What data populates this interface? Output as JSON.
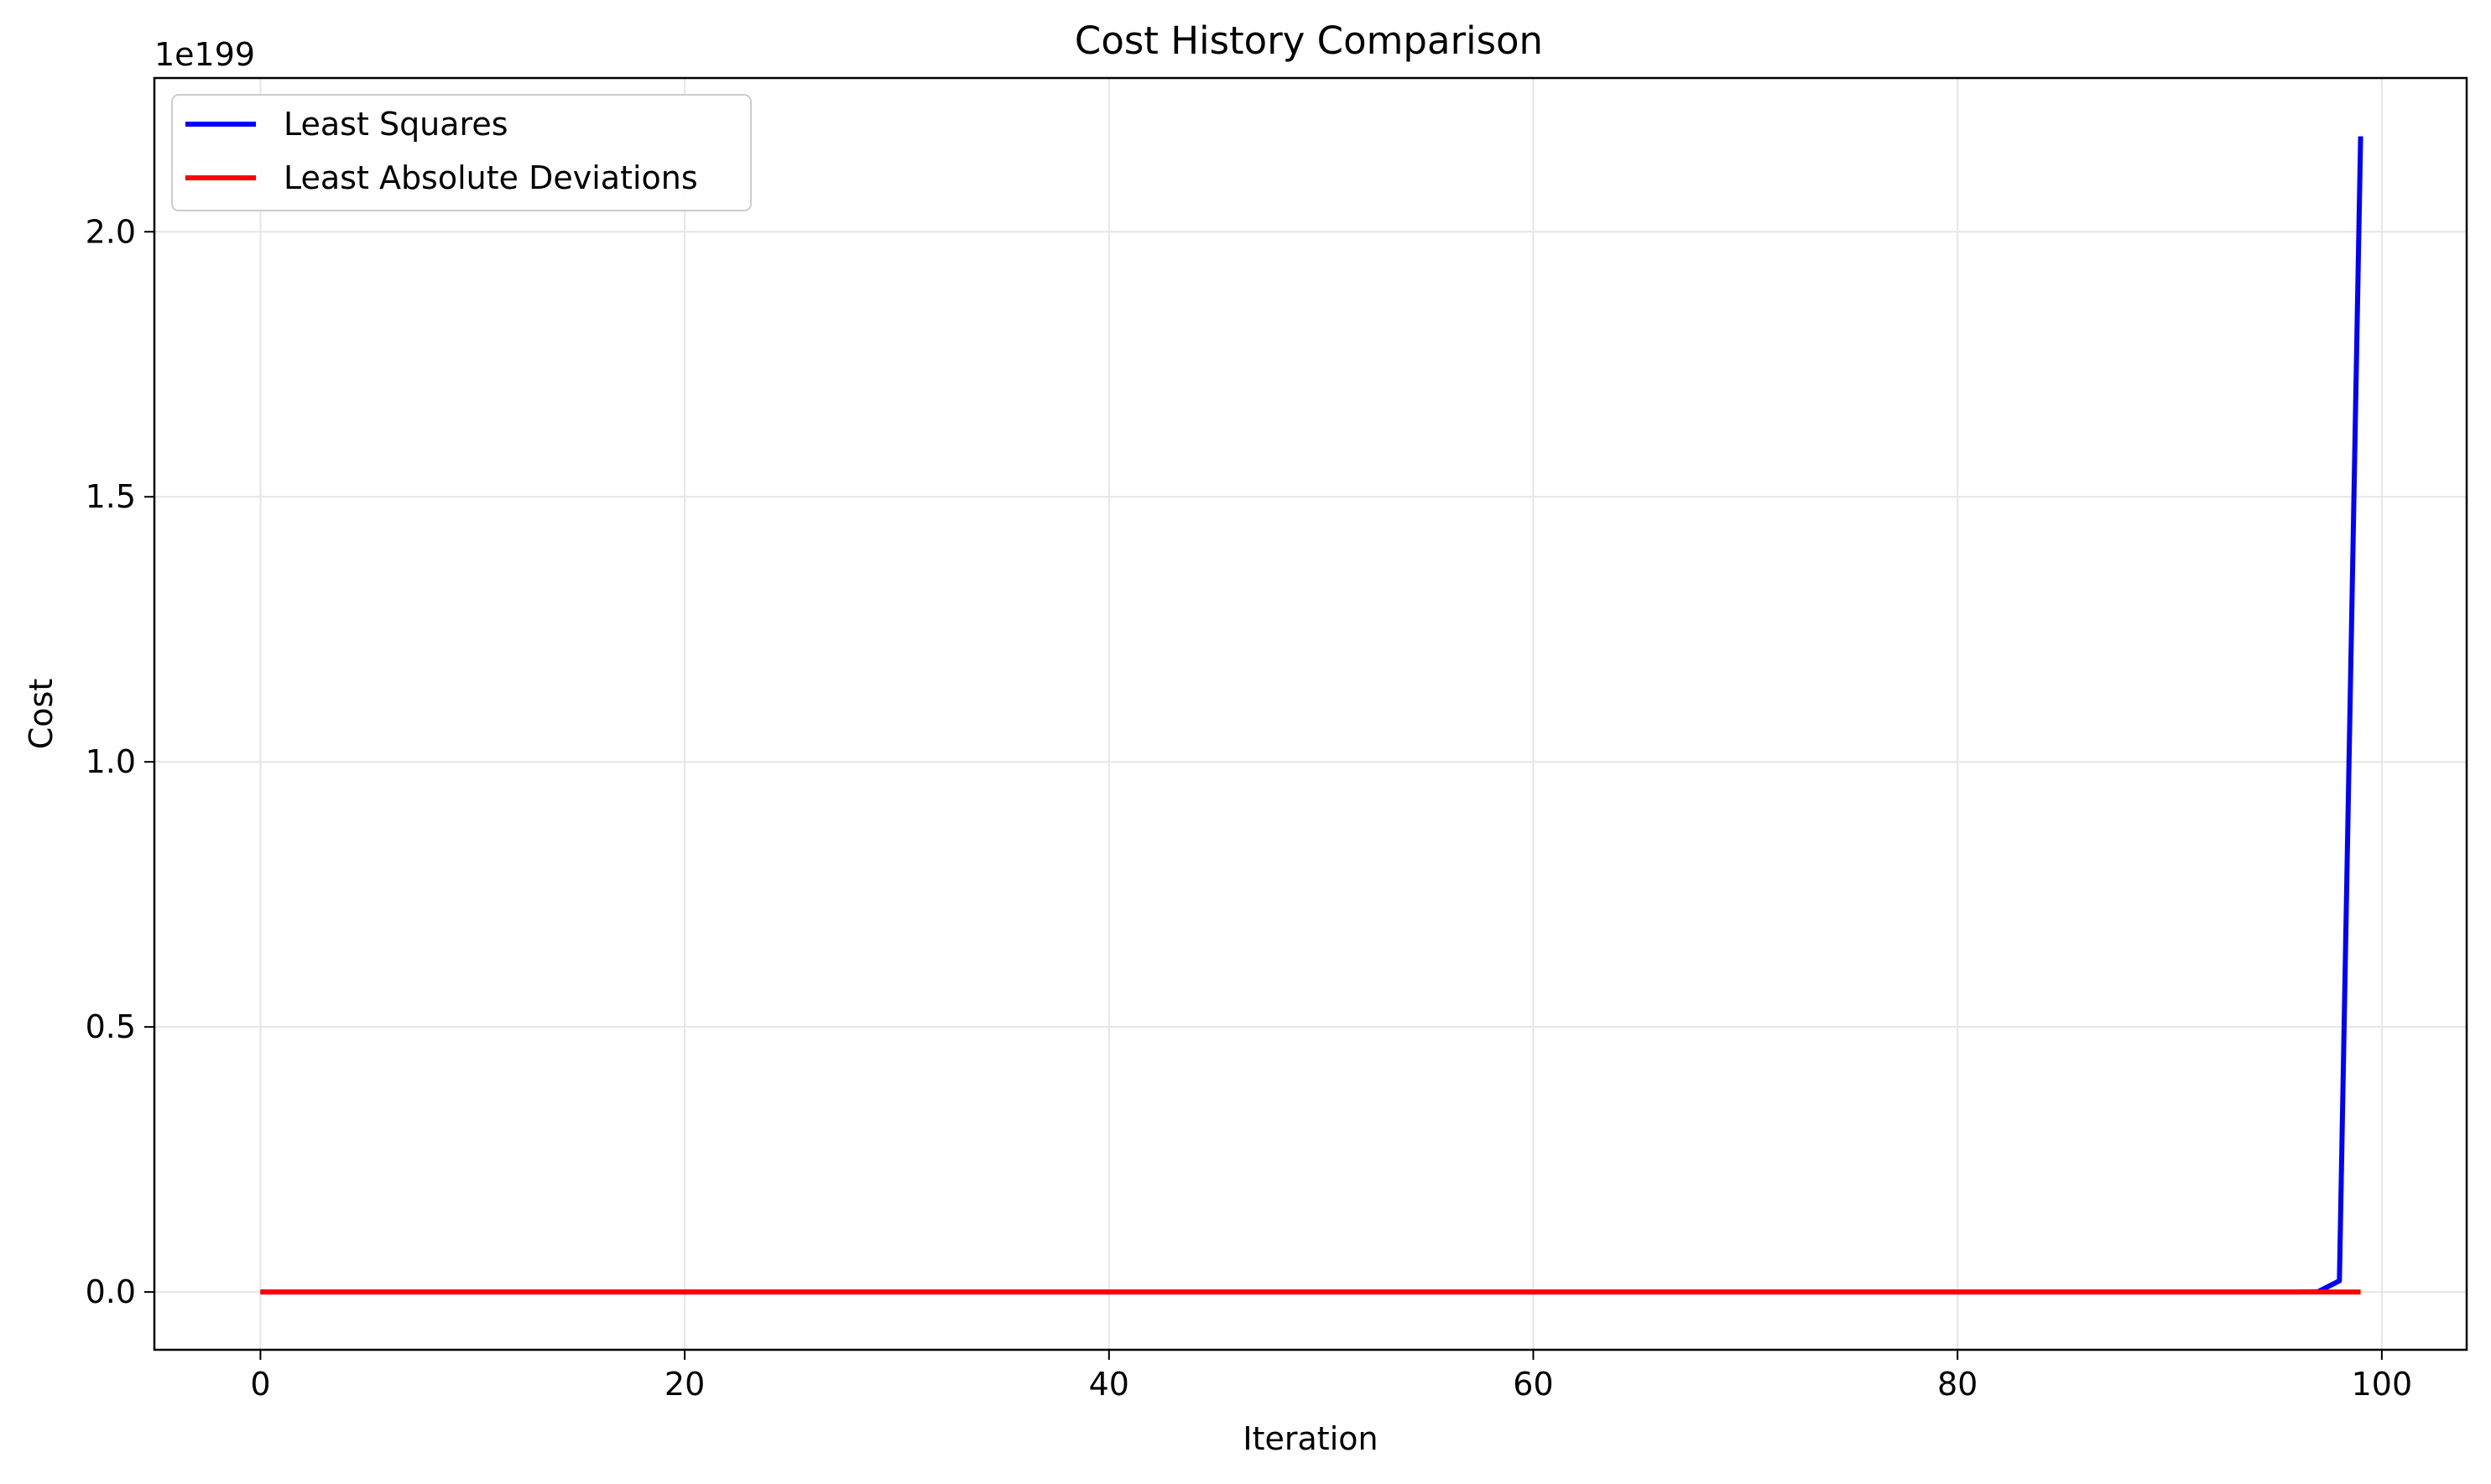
{
  "chart_data": {
    "type": "line",
    "title": "Cost History Comparison",
    "xlabel": "Iteration",
    "ylabel": "Cost",
    "y_offset_label": "1e199",
    "xlim": [
      -5,
      104
    ],
    "ylim": [
      -0.109,
      2.29
    ],
    "x_ticks": [
      0,
      20,
      40,
      60,
      80,
      100
    ],
    "x_tick_labels": [
      "0",
      "20",
      "40",
      "60",
      "80",
      "100"
    ],
    "y_ticks": [
      0.0,
      0.5,
      1.0,
      1.5,
      2.0
    ],
    "y_tick_labels": [
      "0.0",
      "0.5",
      "1.0",
      "1.5",
      "2.0"
    ],
    "grid": true,
    "legend_position": "top-left",
    "series": [
      {
        "name": "Least Squares",
        "color": "#0000ff",
        "x": [
          0,
          96,
          97,
          98,
          99
        ],
        "y": [
          0,
          0,
          0.0006,
          0.021,
          2.18
        ]
      },
      {
        "name": "Least Absolute Deviations",
        "color": "#ff0000",
        "x": [
          0,
          99
        ],
        "y": [
          0,
          0
        ]
      }
    ]
  }
}
